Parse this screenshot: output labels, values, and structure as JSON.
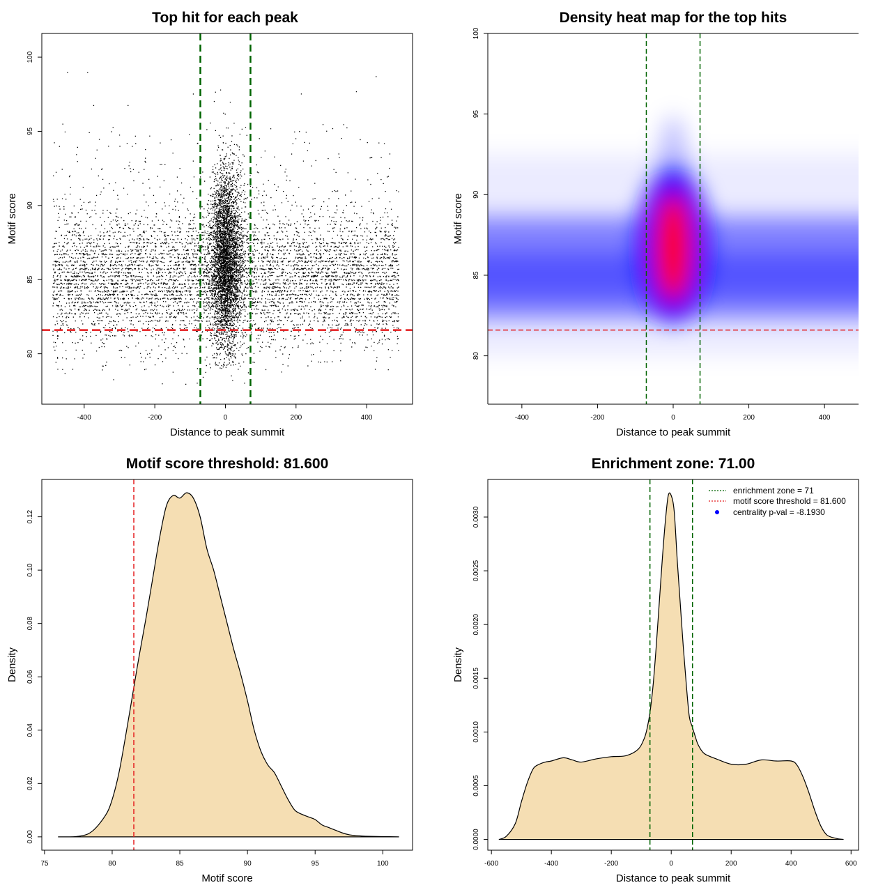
{
  "colors": {
    "threshold_line": "#e41a1c",
    "zone_line": "#006400",
    "density_fill": "#f5deb3",
    "points": "#000000",
    "heat_low": "#ffffff",
    "heat_mid": "#0000ff",
    "heat_high": "#ff0000",
    "legend_dot": "#0000ff"
  },
  "chart_data": [
    {
      "type": "scatter",
      "title": "Top hit for each peak",
      "xlabel": "Distance to peak summit",
      "ylabel": "Motif score",
      "xlim": [
        -520,
        530
      ],
      "ylim": [
        76.6,
        101.6
      ],
      "xticks": [
        -400,
        -200,
        0,
        200,
        400
      ],
      "yticks": [
        80,
        85,
        90,
        95,
        100
      ],
      "x_range_of_points": [
        -490,
        490
      ],
      "central_cluster": {
        "x_center": 0,
        "y_center": 86.5
      },
      "background_band": {
        "y_center": 85.2
      },
      "vlines": [
        -71,
        71
      ],
      "hline": 81.6
    },
    {
      "type": "heatmap",
      "title": "Density heat map for the top hits",
      "xlabel": "Distance to peak summit",
      "ylabel": "Motif score",
      "xlim": [
        -490,
        490
      ],
      "ylim": [
        77,
        100
      ],
      "xticks": [
        -400,
        -200,
        0,
        200,
        400
      ],
      "yticks": [
        80,
        85,
        90,
        95,
        100
      ],
      "peak": {
        "x": 0,
        "y": 86.7
      },
      "vlines": [
        -71,
        71
      ],
      "hline": 81.6
    },
    {
      "type": "area",
      "title": "Motif score threshold: 81.600",
      "xlabel": "Motif score",
      "ylabel": "Density",
      "xlim": [
        74.8,
        102.2
      ],
      "ylim": [
        -0.005,
        0.134
      ],
      "xticks": [
        75,
        80,
        85,
        90,
        95,
        100
      ],
      "yticks": [
        0.0,
        0.02,
        0.04,
        0.06,
        0.08,
        0.1,
        0.12
      ],
      "ytick_labels": [
        "0.00",
        "0.02",
        "0.04",
        "0.06",
        "0.08",
        "0.10",
        "0.12"
      ],
      "x": [
        76.0,
        77.5,
        78.5,
        79.5,
        80.0,
        80.5,
        81.0,
        81.6,
        82.0,
        82.5,
        83.0,
        83.5,
        84.0,
        84.5,
        85.0,
        85.5,
        86.0,
        86.5,
        87.0,
        87.5,
        88.0,
        88.5,
        89.0,
        89.5,
        90.0,
        90.5,
        91.0,
        91.5,
        92.0,
        92.5,
        93.0,
        93.5,
        94.0,
        94.5,
        95.0,
        95.5,
        96.0,
        96.5,
        97.0,
        97.5,
        98.0,
        98.5,
        99.0,
        100.0,
        101.2
      ],
      "y": [
        0.0,
        0.0002,
        0.002,
        0.008,
        0.014,
        0.024,
        0.038,
        0.056,
        0.068,
        0.082,
        0.097,
        0.112,
        0.124,
        0.128,
        0.127,
        0.129,
        0.127,
        0.12,
        0.108,
        0.1,
        0.09,
        0.08,
        0.07,
        0.061,
        0.051,
        0.04,
        0.032,
        0.027,
        0.024,
        0.019,
        0.014,
        0.01,
        0.0085,
        0.0075,
        0.0065,
        0.0045,
        0.0035,
        0.0025,
        0.0015,
        0.0008,
        0.0005,
        0.0003,
        0.0002,
        0.0001,
        0.0
      ],
      "vline": 81.6
    },
    {
      "type": "area",
      "title": "Enrichment zone: 71.00",
      "xlabel": "Distance to peak summit",
      "ylabel": "Density",
      "xlim": [
        -612,
        625
      ],
      "ylim": [
        -0.0001,
        0.00335
      ],
      "xticks": [
        -600,
        -400,
        -200,
        0,
        200,
        400,
        600
      ],
      "yticks": [
        0.0,
        0.0005,
        0.001,
        0.0015,
        0.002,
        0.0025,
        0.003
      ],
      "ytick_labels": [
        "0.0000",
        "0.0005",
        "0.0010",
        "0.0015",
        "0.0020",
        "0.0025",
        "0.0030"
      ],
      "x": [
        -575,
        -550,
        -520,
        -500,
        -480,
        -460,
        -440,
        -420,
        -400,
        -360,
        -330,
        -300,
        -250,
        -200,
        -150,
        -110,
        -90,
        -80,
        -70,
        -60,
        -50,
        -40,
        -30,
        -20,
        -10,
        0,
        10,
        20,
        30,
        40,
        50,
        60,
        70,
        80,
        90,
        110,
        150,
        200,
        250,
        300,
        350,
        400,
        420,
        440,
        460,
        480,
        500,
        520,
        550,
        575
      ],
      "y": [
        0.0,
        3e-05,
        0.00015,
        0.00035,
        0.00053,
        0.00066,
        0.0007,
        0.00072,
        0.00073,
        0.00076,
        0.00074,
        0.00072,
        0.00075,
        0.00077,
        0.00078,
        0.00084,
        0.00094,
        0.00104,
        0.0012,
        0.00145,
        0.0018,
        0.0022,
        0.0026,
        0.00295,
        0.0032,
        0.0032,
        0.00305,
        0.0026,
        0.0022,
        0.0018,
        0.00145,
        0.00115,
        0.00105,
        0.00096,
        0.00088,
        0.0008,
        0.00075,
        0.0007,
        0.0007,
        0.00074,
        0.00073,
        0.00073,
        0.00069,
        0.00058,
        0.00043,
        0.00026,
        0.00012,
        4e-05,
        1e-05,
        0.0
      ],
      "vlines": [
        -71,
        71
      ],
      "legend": {
        "entries": [
          {
            "label": "enrichment zone = 71",
            "kind": "dotted-line",
            "color": "#006400"
          },
          {
            "label": "motif score threshold = 81.600",
            "kind": "dotted-line",
            "color": "#e41a1c"
          },
          {
            "label": "centrality p-val = -8.1930",
            "kind": "dot",
            "color": "#0000ff"
          }
        ],
        "placement": "top-right"
      }
    }
  ]
}
